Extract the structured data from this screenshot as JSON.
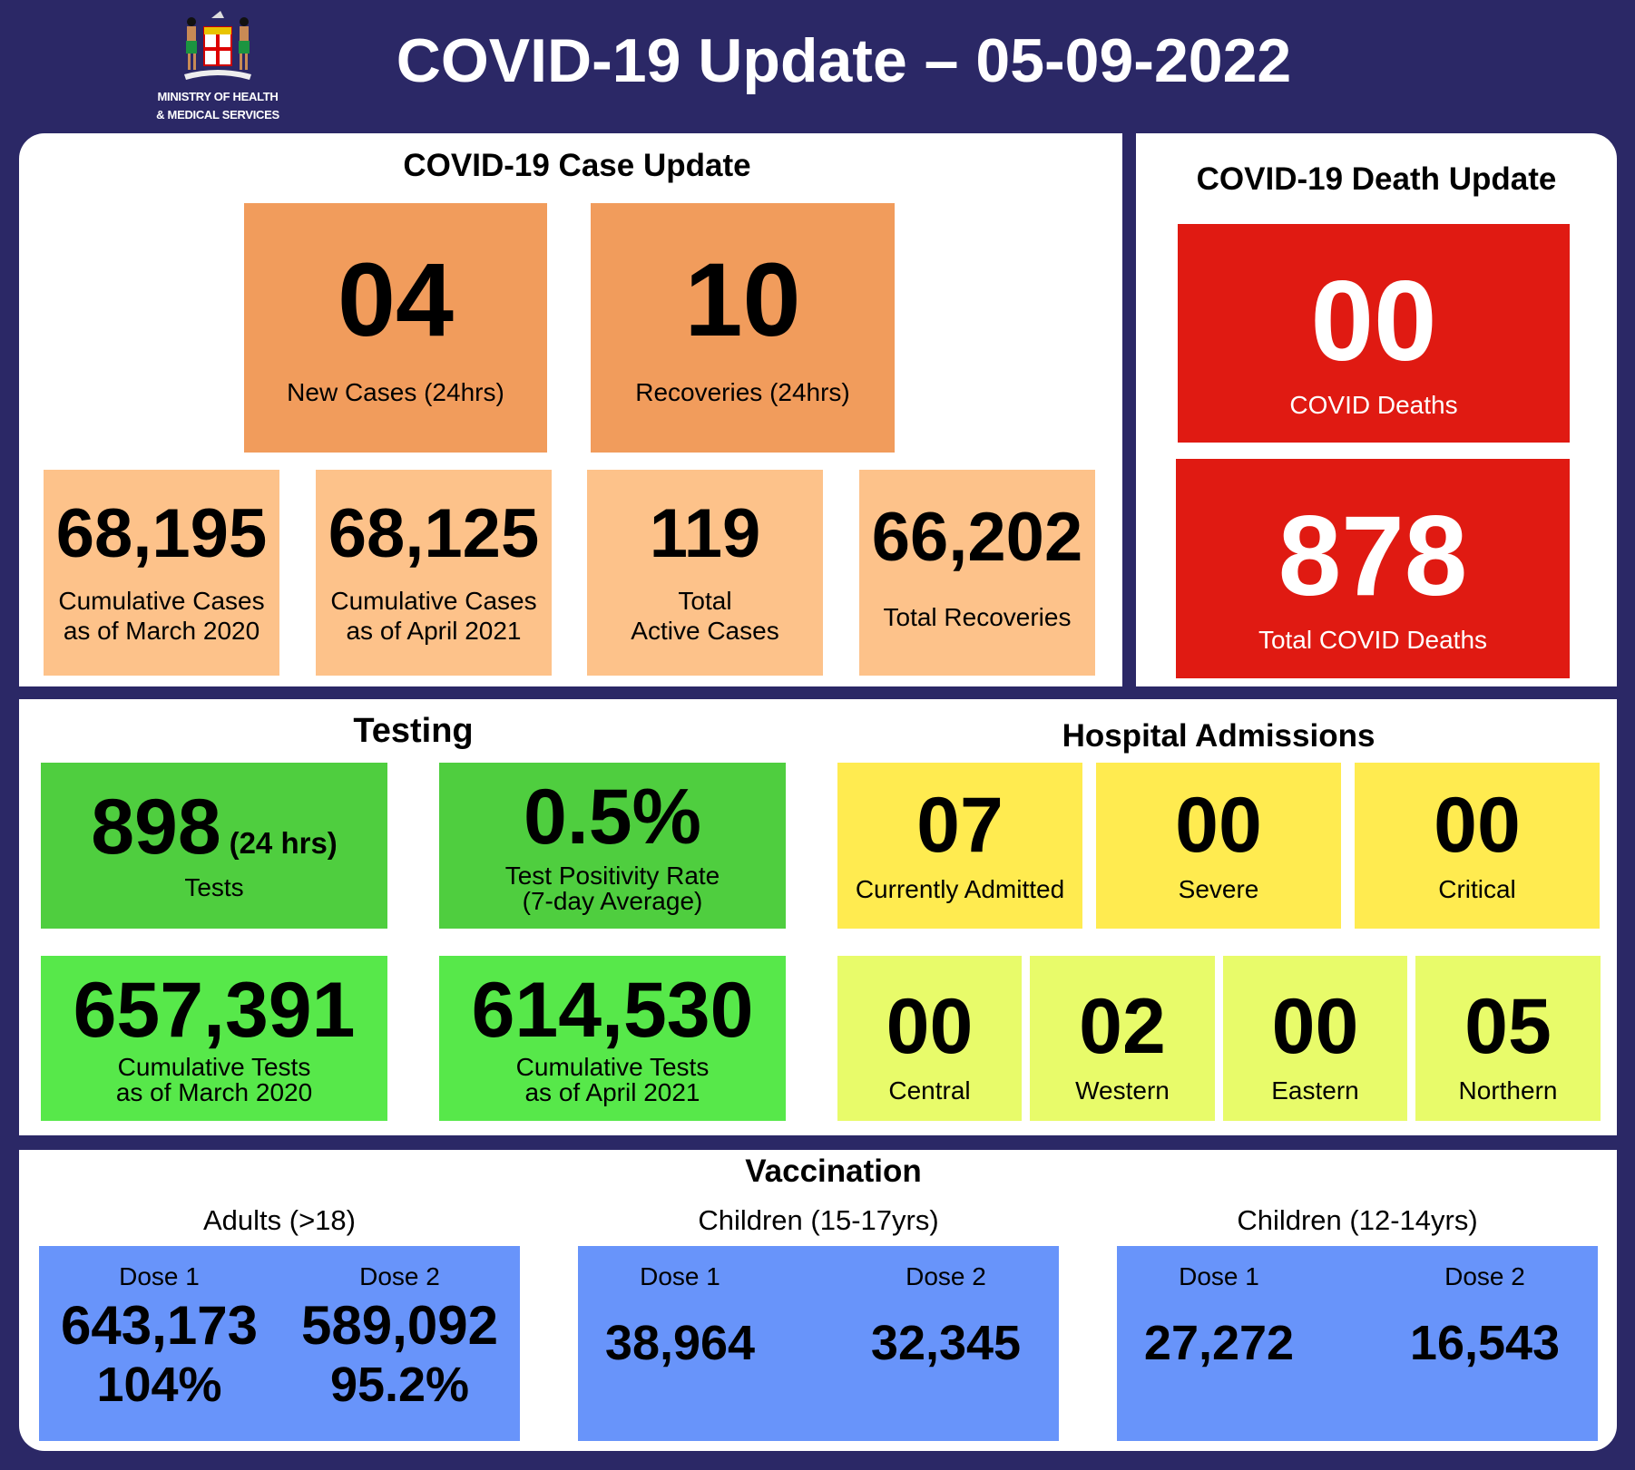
{
  "header": {
    "title": "COVID-19 Update – 05-09-2022",
    "logo_text_1": "MINISTRY OF HEALTH",
    "logo_text_2": "& MEDICAL SERVICES"
  },
  "cases": {
    "title": "COVID-19 Case Update",
    "new_cases": {
      "value": "04",
      "label": "New Cases (24hrs)"
    },
    "recoveries": {
      "value": "10",
      "label": "Recoveries (24hrs)"
    },
    "cum_march": {
      "value": "68,195",
      "label1": "Cumulative Cases",
      "label2": "as of March 2020"
    },
    "cum_april": {
      "value": "68,125",
      "label1": "Cumulative Cases",
      "label2": "as of April 2021"
    },
    "active": {
      "value": "119",
      "label1": "Total",
      "label2": "Active Cases"
    },
    "total_recoveries": {
      "value": "66,202",
      "label": "Total Recoveries"
    }
  },
  "deaths": {
    "title": "COVID-19 Death Update",
    "new": {
      "value": "00",
      "label": "COVID Deaths"
    },
    "total": {
      "value": "878",
      "label": "Total COVID Deaths"
    }
  },
  "testing": {
    "title": "Testing",
    "tests": {
      "value": "898",
      "suffix": "(24 hrs)",
      "label": "Tests"
    },
    "positivity": {
      "value": "0.5%",
      "label1": "Test Positivity Rate",
      "label2": "(7-day Average)"
    },
    "cum_march": {
      "value": "657,391",
      "label1": "Cumulative Tests",
      "label2": "as of March 2020"
    },
    "cum_april": {
      "value": "614,530",
      "label1": "Cumulative Tests",
      "label2": "as of April 2021"
    }
  },
  "hospital": {
    "title": "Hospital Admissions",
    "status": [
      {
        "value": "07",
        "label": "Currently Admitted"
      },
      {
        "value": "00",
        "label": "Severe"
      },
      {
        "value": "00",
        "label": "Critical"
      }
    ],
    "divisions": [
      {
        "value": "00",
        "label": "Central"
      },
      {
        "value": "02",
        "label": "Western"
      },
      {
        "value": "00",
        "label": "Eastern"
      },
      {
        "value": "05",
        "label": "Northern"
      }
    ]
  },
  "vaccination": {
    "title": "Vaccination",
    "groups": [
      {
        "label": "Adults (>18)",
        "dose1_label": "Dose 1",
        "dose2_label": "Dose 2",
        "dose1": "643,173",
        "dose2": "589,092",
        "dose1_pct": "104%",
        "dose2_pct": "95.2%"
      },
      {
        "label": "Children (15-17yrs)",
        "dose1_label": "Dose 1",
        "dose2_label": "Dose 2",
        "dose1": "38,964",
        "dose2": "32,345"
      },
      {
        "label": "Children (12-14yrs)",
        "dose1_label": "Dose 1",
        "dose2_label": "Dose 2",
        "dose1": "27,272",
        "dose2": "16,543"
      }
    ]
  },
  "colors": {
    "background": "#2b2866",
    "orange": "#f19c5c",
    "light_orange": "#fdc28a",
    "red": "#e01a12",
    "green": "#4fce3f",
    "light_green": "#57e84a",
    "yellow": "#ffeb50",
    "light_yellow": "#e8fb6a",
    "blue": "#6894fa"
  }
}
